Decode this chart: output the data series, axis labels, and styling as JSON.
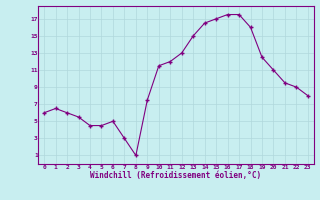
{
  "x": [
    0,
    1,
    2,
    3,
    4,
    5,
    6,
    7,
    8,
    9,
    10,
    11,
    12,
    13,
    14,
    15,
    16,
    17,
    18,
    19,
    20,
    21,
    22,
    23
  ],
  "y": [
    6,
    6.5,
    6,
    5.5,
    4.5,
    4.5,
    5,
    3,
    1,
    7.5,
    11.5,
    12,
    13,
    15,
    16.5,
    17,
    17.5,
    17.5,
    16,
    12.5,
    11,
    9.5,
    9,
    8
  ],
  "xlabel": "Windchill (Refroidissement éolien,°C)",
  "line_color": "#800080",
  "bg_color": "#c8eef0",
  "grid_color": "#b0d8dc",
  "ylim": [
    0,
    18
  ],
  "xlim": [
    -0.5,
    23.5
  ],
  "yticks": [
    1,
    3,
    5,
    7,
    9,
    11,
    13,
    15,
    17
  ],
  "xticks": [
    0,
    1,
    2,
    3,
    4,
    5,
    6,
    7,
    8,
    9,
    10,
    11,
    12,
    13,
    14,
    15,
    16,
    17,
    18,
    19,
    20,
    21,
    22,
    23
  ]
}
